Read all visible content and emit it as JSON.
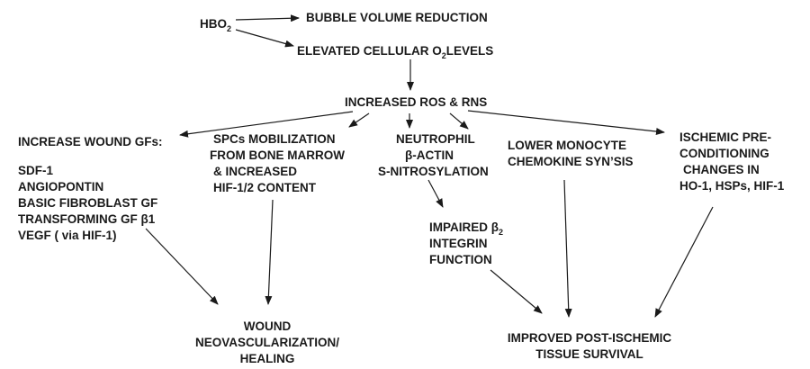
{
  "nodes": {
    "hbo2": {
      "main": "HBO",
      "sub": "2"
    },
    "bubble": "BUBBLE VOLUME REDUCTION",
    "elevated": {
      "pre": "ELEVATED CELLULAR O",
      "sub": "2",
      "post": "LEVELS"
    },
    "ros": "INCREASED ROS & RNS",
    "wound_gfs": {
      "title": "INCREASE WOUND GFs:",
      "items": [
        "SDF-1",
        "ANGIOPONTIN",
        "BASIC FIBROBLAST GF",
        "TRANSFORMING GF β1",
        "VEGF ( via HIF-1)"
      ]
    },
    "spcs": [
      "SPCs MOBILIZATION",
      "FROM BONE MARROW",
      "& INCREASED",
      "HIF-1/2 CONTENT"
    ],
    "neutrophil": [
      "NEUTROPHIL",
      "β-ACTIN",
      "S-NITROSYLATION"
    ],
    "monocyte": [
      "LOWER MONOCYTE",
      "CHEMOKINE SYN’SIS"
    ],
    "ischemic": [
      "ISCHEMIC PRE-",
      "CONDITIONING",
      "CHANGES IN",
      "HO-1, HSPs, HIF-1"
    ],
    "impaired": {
      "line1": "IMPAIRED β",
      "line1_sub": "2",
      "line2": "INTEGRIN",
      "line3": "FUNCTION"
    },
    "wound": [
      "WOUND",
      "NEOVASCULARIZATION/",
      "HEALING"
    ],
    "improved": [
      "IMPROVED POST-ISCHEMIC",
      "TISSUE SURVIVAL"
    ]
  }
}
